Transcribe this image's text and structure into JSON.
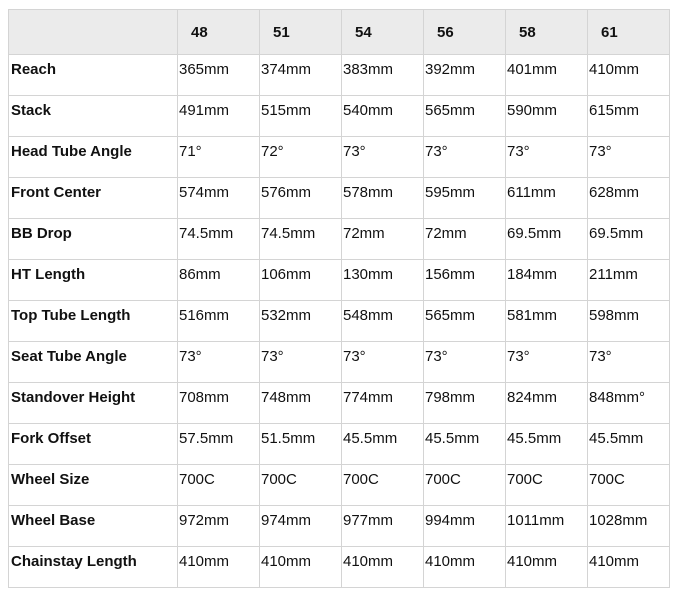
{
  "table": {
    "header": [
      "",
      "48",
      "51",
      "54",
      "56",
      "58",
      "61"
    ],
    "rows": [
      {
        "label": "Reach",
        "values": [
          "365mm",
          "374mm",
          "383mm",
          "392mm",
          "401mm",
          "410mm"
        ]
      },
      {
        "label": "Stack",
        "values": [
          "491mm",
          "515mm",
          "540mm",
          "565mm",
          "590mm",
          "615mm"
        ]
      },
      {
        "label": "Head Tube Angle",
        "values": [
          "71°",
          "72°",
          "73°",
          "73°",
          "73°",
          "73°"
        ]
      },
      {
        "label": "Front Center",
        "values": [
          "574mm",
          "576mm",
          "578mm",
          "595mm",
          "611mm",
          "628mm"
        ]
      },
      {
        "label": "BB Drop",
        "values": [
          "74.5mm",
          "74.5mm",
          "72mm",
          "72mm",
          "69.5mm",
          "69.5mm"
        ]
      },
      {
        "label": "HT Length",
        "values": [
          "86mm",
          "106mm",
          "130mm",
          "156mm",
          "184mm",
          "211mm"
        ]
      },
      {
        "label": "Top Tube Length",
        "values": [
          "516mm",
          "532mm",
          "548mm",
          "565mm",
          "581mm",
          "598mm"
        ]
      },
      {
        "label": "Seat Tube Angle",
        "values": [
          "73°",
          "73°",
          "73°",
          "73°",
          "73°",
          "73°"
        ]
      },
      {
        "label": "Standover Height",
        "values": [
          "708mm",
          "748mm",
          "774mm",
          "798mm",
          "824mm",
          "848mm°"
        ]
      },
      {
        "label": "Fork Offset",
        "values": [
          "57.5mm",
          "51.5mm",
          "45.5mm",
          "45.5mm",
          "45.5mm",
          "45.5mm"
        ]
      },
      {
        "label": "Wheel Size",
        "values": [
          "700C",
          "700C",
          "700C",
          "700C",
          "700C",
          "700C"
        ]
      },
      {
        "label": "Wheel Base",
        "values": [
          "972mm",
          "974mm",
          "977mm",
          "994mm",
          "1011mm",
          "1028mm"
        ]
      },
      {
        "label": "Chainstay Length",
        "values": [
          "410mm",
          "410mm",
          "410mm",
          "410mm",
          "410mm",
          "410mm"
        ]
      }
    ]
  },
  "colors": {
    "header_bg": "#ebebeb",
    "border": "#d4d4d4"
  }
}
